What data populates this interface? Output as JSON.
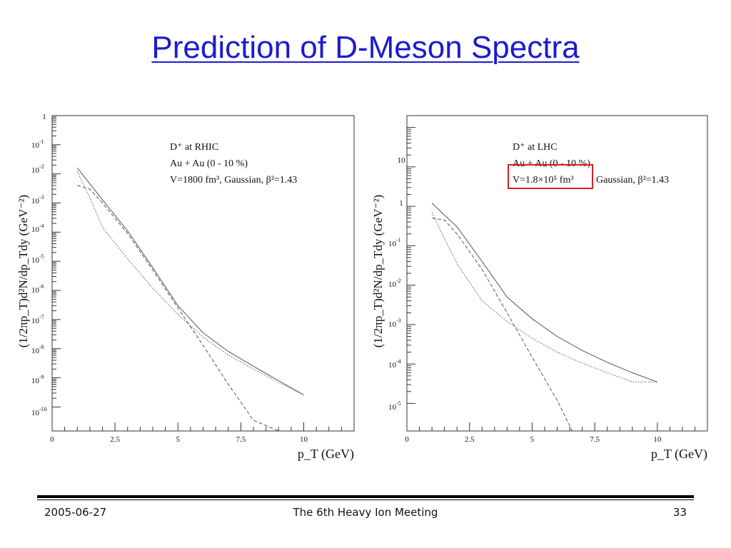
{
  "slide": {
    "title": "Prediction of D-Meson Spectra",
    "footer": {
      "date": "2005-06-27",
      "center": "The 6th Heavy Ion Meeting",
      "page": "33"
    }
  },
  "chart_data": [
    {
      "type": "line",
      "ylabel": "(1/2πp_T)d²N/dp_Tdy (GeV⁻²)",
      "xlabel": "p_T (GeV)",
      "xscale": "linear",
      "yscale": "log",
      "xlim": [
        0,
        12
      ],
      "ylim": [
        1.5e-11,
        1
      ],
      "x_ticks": [
        "0",
        "2.5",
        "5",
        "7.5",
        "10"
      ],
      "y_ticks": [
        {
          "base": "",
          "exp": "",
          "text": "1"
        },
        {
          "base": "10",
          "exp": "-1"
        },
        {
          "base": "10",
          "exp": "-2"
        },
        {
          "base": "10",
          "exp": "-3"
        },
        {
          "base": "10",
          "exp": "-4"
        },
        {
          "base": "10",
          "exp": "-5"
        },
        {
          "base": "10",
          "exp": "-6"
        },
        {
          "base": "10",
          "exp": "-7"
        },
        {
          "base": "10",
          "exp": "-8"
        },
        {
          "base": "10",
          "exp": "-9"
        },
        {
          "base": "10",
          "exp": "-10"
        }
      ],
      "annotation": {
        "line1": "D⁺ at RHIC",
        "line2": "Au + Au (0 - 10 %)",
        "line3": "V=1800 fm³, Gaussian, β²=1.43",
        "highlight_line3": false
      },
      "series": [
        {
          "style": "solid",
          "x": [
            1.0,
            2.0,
            3.0,
            4.0,
            5.0,
            6.0,
            7.0,
            8.0,
            9.0,
            10.0
          ],
          "y": [
            0.016,
            0.0013,
            0.00011,
            6e-06,
            3e-07,
            3.5e-08,
            8e-09,
            2.5e-09,
            8e-10,
            2.6e-10
          ]
        },
        {
          "style": "dashed",
          "x": [
            1.0,
            1.5,
            2.0,
            3.0,
            4.0,
            5.0,
            6.0,
            7.0,
            8.0,
            9.0
          ],
          "y": [
            0.004,
            0.003,
            0.001,
            9e-05,
            5e-06,
            2.5e-07,
            1.3e-08,
            6e-10,
            3.5e-11,
            1.8e-12
          ]
        },
        {
          "style": "dotted",
          "x": [
            1.0,
            1.5,
            2.0,
            3.0,
            4.0,
            5.0,
            6.0,
            7.0,
            8.0,
            9.0,
            10.0
          ],
          "y": [
            0.012,
            0.0015,
            0.00015,
            1.2e-05,
            1.2e-06,
            1.5e-07,
            2.5e-08,
            6e-09,
            2e-09,
            7e-10,
            2.6e-10
          ]
        }
      ]
    },
    {
      "type": "line",
      "ylabel": "(1/2πp_T)d²N/dp_Tdy (GeV⁻²)",
      "xlabel": "p_T (GeV)",
      "xscale": "linear",
      "yscale": "log",
      "xlim": [
        0,
        12
      ],
      "ylim": [
        2e-06,
        200
      ],
      "x_ticks": [
        "0",
        "2.5",
        "5",
        "7.5",
        "10"
      ],
      "y_ticks": [
        {
          "base": "10",
          "exp": "",
          "text": "10"
        },
        {
          "base": "1",
          "exp": "",
          "text": "1"
        },
        {
          "base": "10",
          "exp": "-1"
        },
        {
          "base": "10",
          "exp": "-2"
        },
        {
          "base": "10",
          "exp": "-3"
        },
        {
          "base": "10",
          "exp": "-4"
        },
        {
          "base": "10",
          "exp": "-5"
        }
      ],
      "annotation": {
        "line1": "D⁺ at LHC",
        "line2": "Au + Au (0 - 10 %)",
        "line3a": "V=1.8×10⁵ fm³",
        "line3b": ", Gaussian, β²=1.43",
        "highlight_line3": true,
        "highlight_color": "#d62020"
      },
      "series": [
        {
          "style": "solid",
          "x": [
            1.0,
            2.0,
            3.0,
            4.0,
            5.0,
            6.0,
            7.0,
            8.0,
            9.0,
            10.0
          ],
          "y": [
            1.2,
            0.3,
            0.04,
            0.005,
            0.0014,
            0.0005,
            0.00022,
            0.00011,
            6e-05,
            3.5e-05
          ]
        },
        {
          "style": "dashed",
          "x": [
            1.0,
            1.5,
            2.0,
            3.0,
            4.0,
            5.0,
            6.0,
            6.6
          ],
          "y": [
            0.5,
            0.45,
            0.2,
            0.025,
            0.002,
            0.00015,
            1.2e-05,
            2e-06
          ]
        },
        {
          "style": "dotted",
          "x": [
            1.0,
            1.5,
            2.0,
            3.0,
            4.0,
            5.0,
            6.0,
            7.0,
            8.0,
            9.0,
            10.0
          ],
          "y": [
            0.7,
            0.15,
            0.035,
            0.004,
            0.0012,
            0.00045,
            0.0002,
            0.000105,
            6e-05,
            3.5e-05,
            3.5e-05
          ]
        }
      ]
    }
  ]
}
